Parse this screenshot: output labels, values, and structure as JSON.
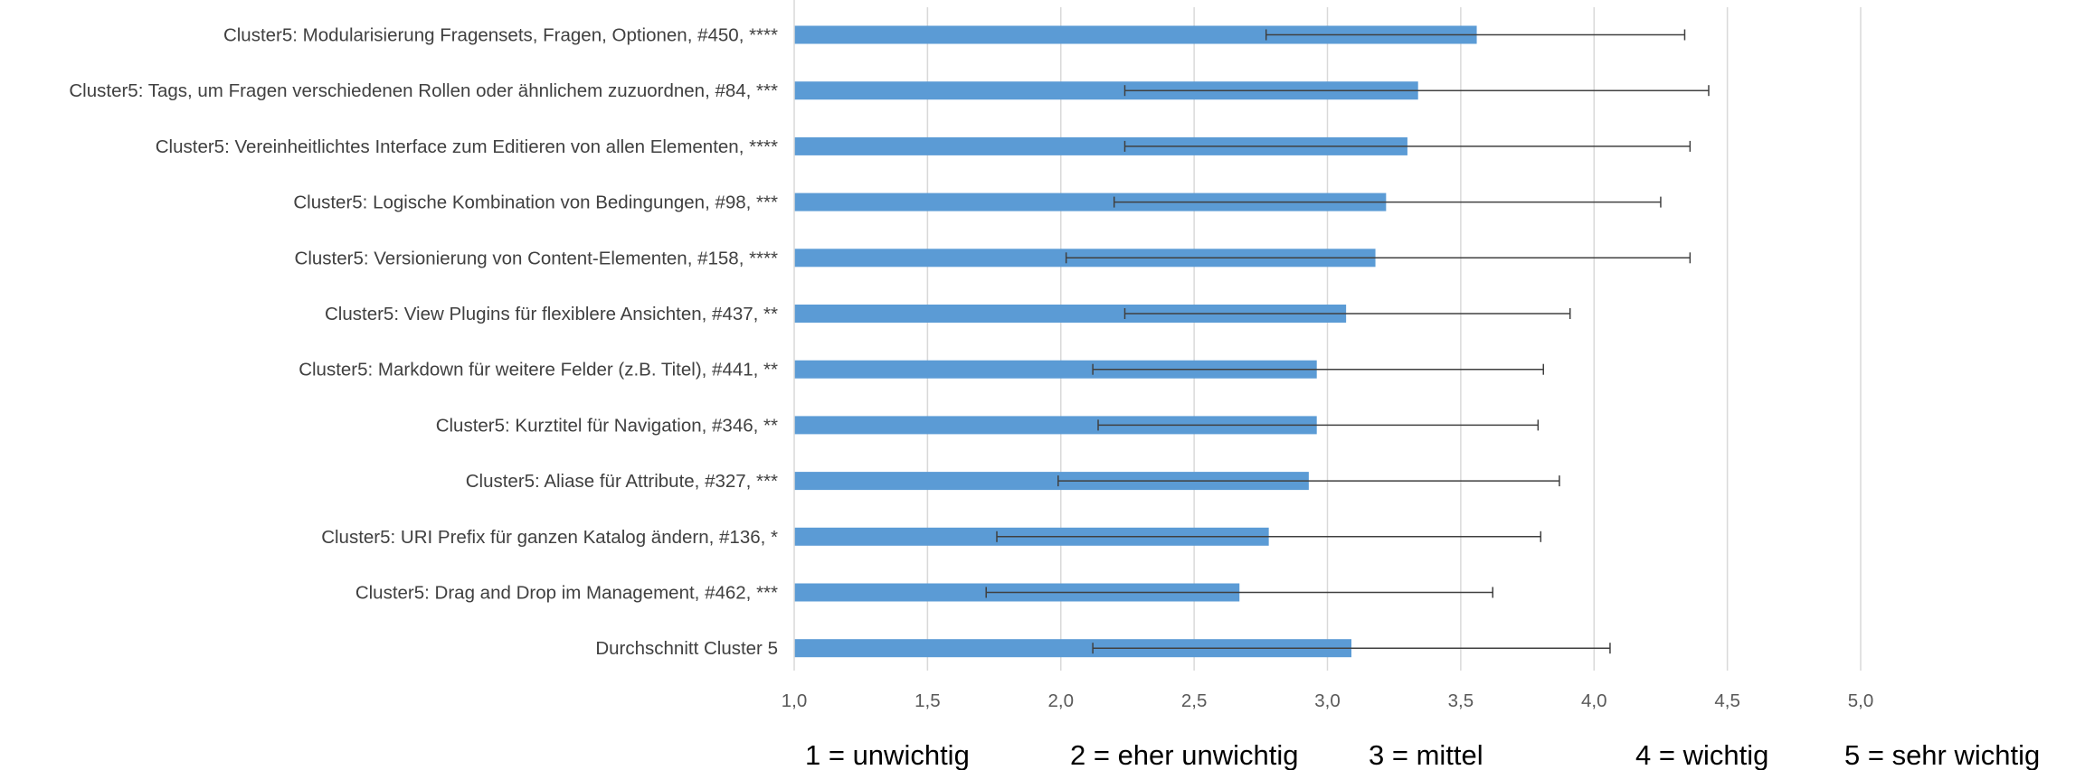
{
  "chart_data": {
    "type": "bar",
    "orientation": "horizontal",
    "title": "",
    "xlabel": "",
    "ylabel": "",
    "xlim": [
      1.0,
      5.0
    ],
    "x_ticks": [
      "1,0",
      "1,5",
      "2,0",
      "2,5",
      "3,0",
      "3,5",
      "4,0",
      "4,5",
      "5,0"
    ],
    "grid": "vertical",
    "bar_color": "#5b9bd5",
    "error_bar_color": "#404040",
    "grid_color": "#d9d9d9",
    "categories": [
      "Cluster5: Modularisierung Fragensets, Fragen, Optionen, #450, ****",
      "Cluster5: Tags, um Fragen verschiedenen Rollen oder ähnlichem zuzuordnen, #84, ***",
      "Cluster5: Vereinheitlichtes Interface zum Editieren von allen Elementen, ****",
      "Cluster5: Logische Kombination von Bedingungen, #98, ***",
      "Cluster5: Versionierung von Content-Elementen, #158, ****",
      "Cluster5: View Plugins für flexiblere Ansichten, #437, **",
      "Cluster5: Markdown für weitere Felder (z.B. Titel), #441, **",
      "Cluster5: Kurztitel für Navigation, #346, **",
      "Cluster5: Aliase für Attribute, #327, ***",
      "Cluster5: URI Prefix für ganzen Katalog ändern, #136, *",
      "Cluster5: Drag and Drop im Management, #462, ***",
      "Durchschnitt Cluster 5"
    ],
    "values": [
      3.56,
      3.34,
      3.3,
      3.22,
      3.18,
      3.07,
      2.96,
      2.96,
      2.93,
      2.78,
      2.67,
      3.09
    ],
    "error_low": [
      2.77,
      2.24,
      2.24,
      2.2,
      2.02,
      2.24,
      2.12,
      2.14,
      1.99,
      1.76,
      1.72,
      2.12
    ],
    "error_high": [
      4.34,
      4.43,
      4.36,
      4.25,
      4.36,
      3.91,
      3.81,
      3.79,
      3.87,
      3.8,
      3.62,
      4.06
    ]
  },
  "legend": {
    "items": [
      "1 = unwichtig",
      "2 = eher unwichtig",
      "3 = mittel",
      "4 = wichtig",
      "5 = sehr wichtig"
    ]
  }
}
